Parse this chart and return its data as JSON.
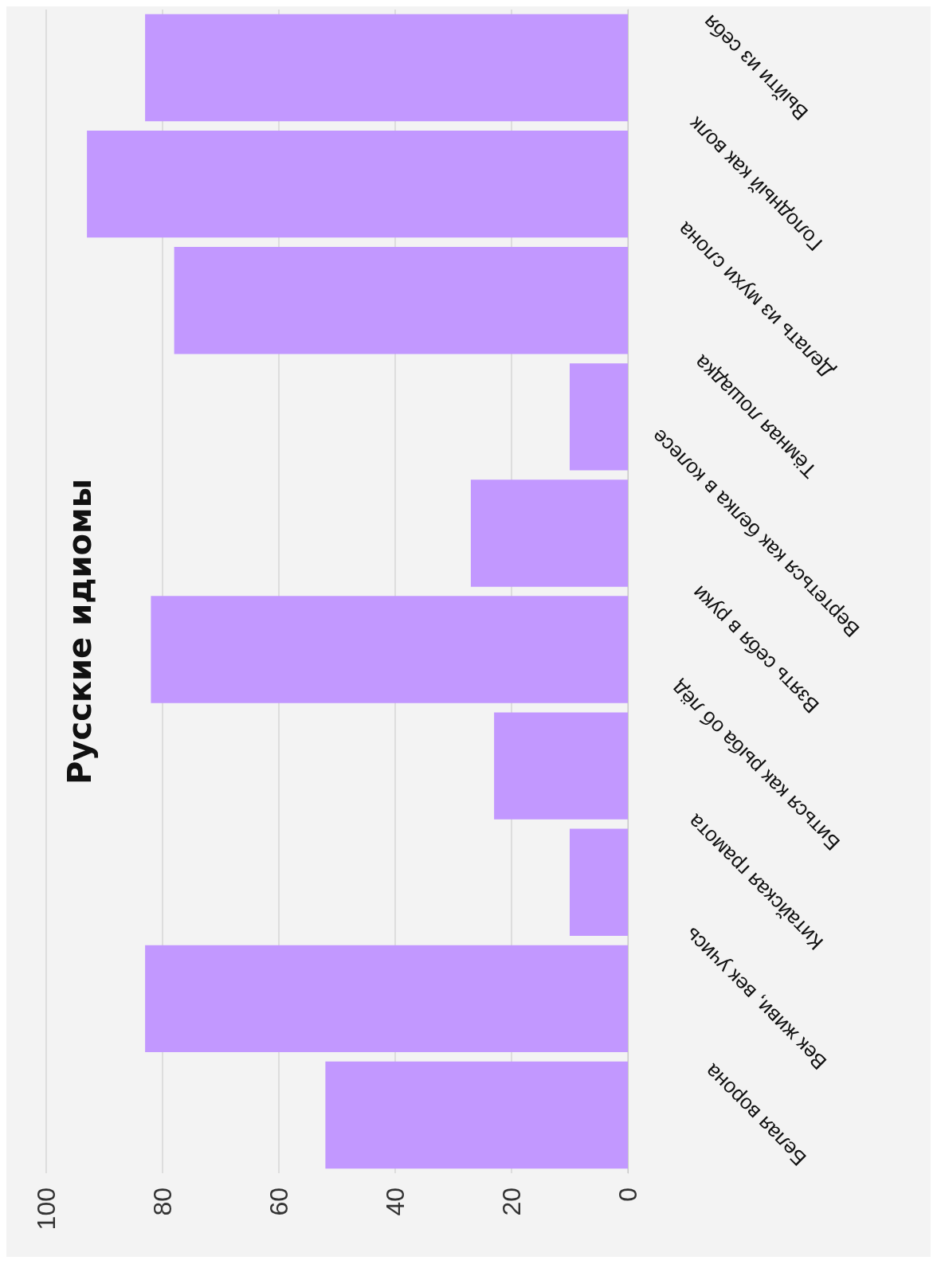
{
  "chart_data": {
    "type": "bar",
    "orientation": "horizontal",
    "title": "Русские идиомы",
    "categories": [
      "Выйти из себя",
      "Голодный как волк",
      "Делать из мухи слона",
      "Тёмная лошадка",
      "Вертеться как белка в колесе",
      "Взять себя в руки",
      "Биться как рыба об лёд",
      "Китайская грамота",
      "Век живи, век учись",
      "Белая ворона"
    ],
    "values": [
      83,
      93,
      78,
      10,
      27,
      82,
      23,
      10,
      83,
      52
    ],
    "color": "#c298ff",
    "xlim": [
      100,
      0
    ],
    "xticks": [
      0,
      20,
      40,
      60,
      80,
      100
    ],
    "grid": "x"
  }
}
